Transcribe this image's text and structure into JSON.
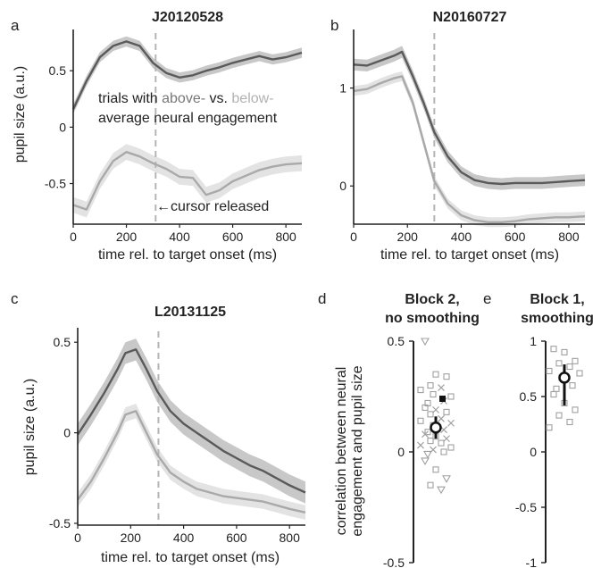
{
  "colors": {
    "above": "#5a5a5a",
    "below": "#a9a9a9",
    "above_band": "#c8c8c8",
    "below_band": "#e3e3e3",
    "axis": "#222222",
    "dash": "#b5b5b5",
    "marker": "#a0a0a0"
  },
  "chart_data": [
    {
      "panel": "a",
      "type": "line",
      "title": "J20120528",
      "xlabel": "time rel. to target onset (ms)",
      "ylabel": "pupil size (a.u.)",
      "xlim": [
        0,
        860
      ],
      "ylim": [
        -0.86,
        0.85
      ],
      "xticks": [
        0,
        200,
        400,
        600,
        800
      ],
      "yticks": [
        -0.5,
        0,
        0.5
      ],
      "xtick_labels": [
        "0",
        "200",
        "400",
        "600",
        "800"
      ],
      "ytick_labels": [
        "-0.5",
        "0",
        "0.5"
      ],
      "vline_x": 310,
      "annotations": {
        "legend_prefix": "trials with ",
        "legend_above": "above-",
        "legend_mid": " vs. ",
        "legend_below": "below-",
        "legend_line2": "average neural engagement",
        "cursor_text": "cursor released"
      },
      "series": [
        {
          "key": "above",
          "x": [
            0,
            50,
            100,
            150,
            200,
            250,
            300,
            350,
            400,
            450,
            500,
            550,
            600,
            650,
            700,
            750,
            800,
            860
          ],
          "y": [
            0.16,
            0.41,
            0.62,
            0.72,
            0.76,
            0.72,
            0.57,
            0.48,
            0.44,
            0.46,
            0.5,
            0.53,
            0.57,
            0.6,
            0.63,
            0.6,
            0.62,
            0.66
          ],
          "band": 0.045
        },
        {
          "key": "below",
          "x": [
            0,
            50,
            100,
            150,
            200,
            250,
            300,
            350,
            400,
            450,
            500,
            550,
            600,
            650,
            700,
            750,
            800,
            860
          ],
          "y": [
            -0.69,
            -0.73,
            -0.48,
            -0.3,
            -0.22,
            -0.26,
            -0.32,
            -0.37,
            -0.44,
            -0.45,
            -0.6,
            -0.56,
            -0.48,
            -0.43,
            -0.38,
            -0.35,
            -0.33,
            -0.32
          ],
          "band": 0.07
        }
      ]
    },
    {
      "panel": "b",
      "type": "line",
      "title": "N20160727",
      "xlabel": "time rel. to target onset (ms)",
      "ylabel": "",
      "xlim": [
        0,
        860
      ],
      "ylim": [
        -0.39,
        1.58
      ],
      "xticks": [
        0,
        200,
        400,
        600,
        800
      ],
      "yticks": [
        0,
        1
      ],
      "xtick_labels": [
        "0",
        "200",
        "400",
        "600",
        "800"
      ],
      "ytick_labels": [
        "0",
        "1"
      ],
      "vline_x": 300,
      "series": [
        {
          "key": "above",
          "x": [
            0,
            50,
            100,
            150,
            180,
            220,
            260,
            300,
            350,
            400,
            450,
            500,
            550,
            600,
            650,
            700,
            750,
            800,
            860
          ],
          "y": [
            1.24,
            1.23,
            1.28,
            1.33,
            1.37,
            1.12,
            0.85,
            0.55,
            0.3,
            0.14,
            0.06,
            0.03,
            0.02,
            0.03,
            0.03,
            0.03,
            0.04,
            0.05,
            0.06
          ],
          "band": 0.06
        },
        {
          "key": "below",
          "x": [
            0,
            50,
            100,
            150,
            180,
            220,
            260,
            300,
            350,
            400,
            450,
            500,
            550,
            600,
            650,
            700,
            750,
            800,
            860
          ],
          "y": [
            0.97,
            0.99,
            1.05,
            1.1,
            1.12,
            0.85,
            0.45,
            0.05,
            -0.18,
            -0.3,
            -0.35,
            -0.37,
            -0.37,
            -0.36,
            -0.34,
            -0.33,
            -0.32,
            -0.32,
            -0.31
          ],
          "band": 0.05
        }
      ]
    },
    {
      "panel": "c",
      "type": "line",
      "title": "L20131125",
      "xlabel": "time rel. to target onset (ms)",
      "ylabel": "pupil size (a.u.)",
      "xlim": [
        0,
        860
      ],
      "ylim": [
        -0.51,
        0.57
      ],
      "xticks": [
        0,
        200,
        400,
        600,
        800
      ],
      "yticks": [
        -0.5,
        0,
        0.5
      ],
      "xtick_labels": [
        "0",
        "200",
        "400",
        "600",
        "800"
      ],
      "ytick_labels": [
        "-0.5",
        "0",
        "0.5"
      ],
      "vline_x": 305,
      "series": [
        {
          "key": "above",
          "x": [
            0,
            50,
            100,
            150,
            180,
            220,
            260,
            300,
            350,
            400,
            450,
            500,
            550,
            600,
            650,
            700,
            750,
            800,
            860
          ],
          "y": [
            -0.01,
            0.1,
            0.22,
            0.35,
            0.44,
            0.46,
            0.35,
            0.23,
            0.12,
            0.05,
            0.0,
            -0.05,
            -0.1,
            -0.14,
            -0.18,
            -0.21,
            -0.25,
            -0.29,
            -0.33
          ],
          "band": 0.06
        },
        {
          "key": "below",
          "x": [
            0,
            50,
            100,
            150,
            180,
            220,
            260,
            300,
            350,
            400,
            450,
            500,
            550,
            600,
            650,
            700,
            750,
            800,
            860
          ],
          "y": [
            -0.37,
            -0.27,
            -0.14,
            0.0,
            0.1,
            0.12,
            0.0,
            -0.12,
            -0.22,
            -0.27,
            -0.31,
            -0.33,
            -0.35,
            -0.36,
            -0.37,
            -0.38,
            -0.4,
            -0.42,
            -0.44
          ],
          "band": 0.04
        }
      ]
    },
    {
      "panel": "d",
      "type": "scatter",
      "title_lines": [
        "Block 2,",
        "no smoothing"
      ],
      "ylabel_lines": [
        "correlation between neural",
        "engagement and pupil size"
      ],
      "ylim": [
        -0.5,
        0.5
      ],
      "yticks": [
        -0.5,
        0,
        0.5
      ],
      "ytick_labels": [
        "-0.5",
        "0",
        "0.5"
      ],
      "points": [
        {
          "m": "tri",
          "y": 0.5
        },
        {
          "m": "sq",
          "y": 0.35
        },
        {
          "m": "sq",
          "y": 0.34
        },
        {
          "m": "sq",
          "y": 0.3
        },
        {
          "m": "x",
          "y": 0.29
        },
        {
          "m": "sq",
          "y": 0.28
        },
        {
          "m": "sq",
          "y": 0.25
        },
        {
          "m": "sq",
          "y": 0.26
        },
        {
          "m": "x",
          "y": 0.23
        },
        {
          "m": "sq",
          "y": 0.22
        },
        {
          "m": "sq",
          "y": 0.2
        },
        {
          "m": "x",
          "y": 0.19
        },
        {
          "m": "sq",
          "y": 0.18
        },
        {
          "m": "sq",
          "y": 0.17
        },
        {
          "m": "x",
          "y": 0.15
        },
        {
          "m": "sq",
          "y": 0.14
        },
        {
          "m": "x",
          "y": 0.13
        },
        {
          "m": "sq",
          "y": 0.12
        },
        {
          "m": "x",
          "y": 0.1
        },
        {
          "m": "sq",
          "y": 0.09
        },
        {
          "m": "x",
          "y": 0.08
        },
        {
          "m": "sq",
          "y": 0.07
        },
        {
          "m": "x",
          "y": 0.06
        },
        {
          "m": "sq",
          "y": 0.05
        },
        {
          "m": "sq",
          "y": 0.04
        },
        {
          "m": "x",
          "y": 0.03
        },
        {
          "m": "sq",
          "y": 0.02
        },
        {
          "m": "x",
          "y": 0.01
        },
        {
          "m": "sq",
          "y": 0.0
        },
        {
          "m": "tri",
          "y": -0.01
        },
        {
          "m": "tri",
          "y": -0.04
        },
        {
          "m": "sq",
          "y": -0.08
        },
        {
          "m": "tri",
          "y": -0.12
        },
        {
          "m": "sq",
          "y": -0.15
        },
        {
          "m": "tri",
          "y": -0.17
        }
      ],
      "highlight": {
        "y": 0.24
      },
      "mean": 0.11,
      "ci": [
        0.06,
        0.16
      ]
    },
    {
      "panel": "e",
      "type": "scatter",
      "title_lines": [
        "Block 1,",
        "smoothing"
      ],
      "ylim": [
        -1,
        1
      ],
      "yticks": [
        -1,
        -0.5,
        0,
        0.5,
        1
      ],
      "ytick_labels": [
        "-1",
        "-0.5",
        "0",
        "0.5",
        "1"
      ],
      "points": [
        {
          "m": "sq",
          "y": 0.93
        },
        {
          "m": "sq",
          "y": 0.9
        },
        {
          "m": "sq",
          "y": 0.82
        },
        {
          "m": "sq",
          "y": 0.8
        },
        {
          "m": "sq",
          "y": 0.77
        },
        {
          "m": "sq",
          "y": 0.73
        },
        {
          "m": "sq",
          "y": 0.71
        },
        {
          "m": "sq",
          "y": 0.67
        },
        {
          "m": "sq",
          "y": 0.6
        },
        {
          "m": "sq",
          "y": 0.57
        },
        {
          "m": "sq",
          "y": 0.52
        },
        {
          "m": "sq",
          "y": 0.44
        },
        {
          "m": "sq",
          "y": 0.38
        },
        {
          "m": "sq",
          "y": 0.33
        },
        {
          "m": "sq",
          "y": 0.27
        },
        {
          "m": "sq",
          "y": 0.22
        }
      ],
      "mean": 0.67,
      "ci": [
        0.42,
        0.79
      ]
    }
  ]
}
